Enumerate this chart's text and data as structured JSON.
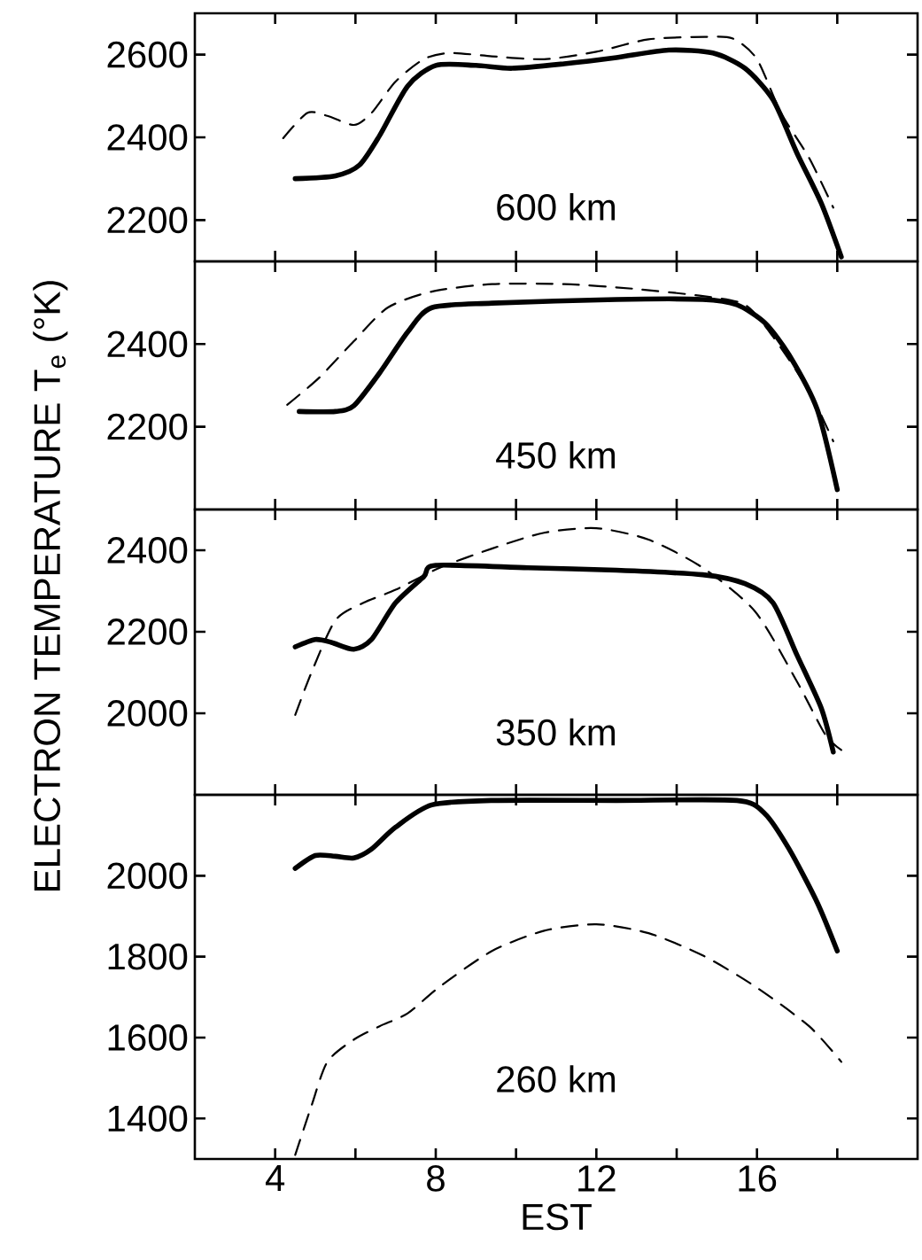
{
  "chart_data": [
    {
      "type": "line",
      "ylabel": "ELECTRON  TEMPERATURE  T$_{e}$ (°K)",
      "annotations": [
        "600 km"
      ],
      "xlim": [
        2,
        20
      ],
      "xticks": [
        4,
        {
          "value": 6,
          "label": null
        },
        8,
        {
          "value": 10,
          "label": null
        },
        12,
        {
          "value": 14,
          "label": null
        },
        16,
        {
          "value": 18,
          "label": null
        }
      ],
      "ylim": [
        2100,
        2700
      ],
      "yticks": [
        2200,
        2400,
        2600
      ],
      "tick_labels": "y",
      "series": [
        {
          "color": "#000000",
          "line_style": "solid",
          "x": [
            4.5,
            5.5,
            6.1,
            6.6,
            7.3,
            8.0,
            9.0,
            9.9,
            11.2,
            12.5,
            13.8,
            14.9,
            15.7,
            16.4,
            17.0,
            17.6,
            18.1
          ],
          "values": [
            2300,
            2307,
            2333,
            2404,
            2524,
            2574,
            2574,
            2567,
            2578,
            2593,
            2611,
            2604,
            2567,
            2491,
            2361,
            2241,
            2111
          ]
        },
        {
          "color": "#000000",
          "line_style": "dashed",
          "x": [
            4.2,
            4.8,
            5.3,
            5.96,
            6.4,
            7.0,
            7.7,
            8.35,
            9.4,
            10.7,
            12.0,
            13.3,
            14.7,
            15.4,
            16.0,
            16.6,
            17.3,
            17.9
          ],
          "values": [
            2398,
            2459,
            2452,
            2430,
            2459,
            2535,
            2589,
            2604,
            2596,
            2589,
            2607,
            2637,
            2643,
            2639,
            2589,
            2459,
            2350,
            2230
          ]
        }
      ]
    },
    {
      "type": "line",
      "annotations": [
        "450 km"
      ],
      "xlim": [
        2,
        20
      ],
      "xticks": [
        4,
        {
          "value": 6,
          "label": null
        },
        8,
        {
          "value": 10,
          "label": null
        },
        12,
        {
          "value": 14,
          "label": null
        },
        16,
        {
          "value": 18,
          "label": null
        }
      ],
      "ylim": [
        2000,
        2600
      ],
      "yticks": [
        2200,
        2400
      ],
      "tick_labels": "y",
      "series": [
        {
          "color": "#000000",
          "line_style": "solid",
          "x": [
            4.6,
            5.5,
            5.96,
            6.6,
            7.3,
            7.9,
            9.4,
            12.5,
            14.65,
            15.5,
            16.2,
            16.8,
            17.5,
            18.0
          ],
          "values": [
            2237,
            2237,
            2251,
            2330,
            2429,
            2488,
            2499,
            2508,
            2508,
            2495,
            2451,
            2374,
            2242,
            2048
          ]
        },
        {
          "color": "#000000",
          "line_style": "dashed",
          "x": [
            4.3,
            5.1,
            5.96,
            6.8,
            7.9,
            9.4,
            11.2,
            12.9,
            14.65,
            15.7,
            16.4,
            17.3,
            17.9
          ],
          "values": [
            2253,
            2319,
            2407,
            2488,
            2527,
            2545,
            2545,
            2534,
            2516,
            2495,
            2418,
            2286,
            2165
          ]
        }
      ]
    },
    {
      "type": "line",
      "annotations": [
        "350 km"
      ],
      "xlim": [
        2,
        20
      ],
      "xticks": [
        4,
        {
          "value": 6,
          "label": null
        },
        8,
        {
          "value": 10,
          "label": null
        },
        12,
        {
          "value": 14,
          "label": null
        },
        16,
        {
          "value": 18,
          "label": null
        }
      ],
      "ylim": [
        1800,
        2500
      ],
      "yticks": [
        2000,
        2200,
        2400
      ],
      "tick_labels": "y",
      "series": [
        {
          "color": "#000000",
          "line_style": "solid",
          "x": [
            4.5,
            5.0,
            5.4,
            5.96,
            6.4,
            7.0,
            7.7,
            8.0,
            10.3,
            12.5,
            14.65,
            15.7,
            16.4,
            17.0,
            17.6,
            17.9
          ],
          "values": [
            2163,
            2181,
            2174,
            2157,
            2181,
            2271,
            2335,
            2363,
            2357,
            2351,
            2340,
            2318,
            2271,
            2142,
            2013,
            1905
          ]
        },
        {
          "color": "#000000",
          "line_style": "dashed",
          "x": [
            4.5,
            4.9,
            5.5,
            6.2,
            7.0,
            8.1,
            9.4,
            10.7,
            12.0,
            13.3,
            14.65,
            15.96,
            17.0,
            17.7,
            18.1
          ],
          "values": [
            1996,
            2099,
            2228,
            2271,
            2303,
            2357,
            2404,
            2443,
            2454,
            2426,
            2357,
            2249,
            2077,
            1948,
            1910
          ]
        }
      ]
    },
    {
      "type": "line",
      "xlabel": "EST",
      "annotations": [
        "260 km"
      ],
      "xlim": [
        2,
        20
      ],
      "xticks": [
        4,
        {
          "value": 6,
          "label": null
        },
        8,
        {
          "value": 10,
          "label": null
        },
        12,
        {
          "value": 14,
          "label": null
        },
        16,
        {
          "value": 18,
          "label": null
        }
      ],
      "ylim": [
        1300,
        2200
      ],
      "yticks": [
        1400,
        1600,
        1800,
        2000
      ],
      "series": [
        {
          "color": "#000000",
          "line_style": "solid",
          "x": [
            4.5,
            5.0,
            5.5,
            5.96,
            6.4,
            7.0,
            7.9,
            9.4,
            12.5,
            15.5,
            16.2,
            16.8,
            17.5,
            18.0
          ],
          "values": [
            2018,
            2050,
            2048,
            2044,
            2066,
            2120,
            2175,
            2186,
            2186,
            2186,
            2153,
            2066,
            1934,
            1814
          ]
        },
        {
          "color": "#000000",
          "line_style": "dashed",
          "x": [
            4.5,
            4.9,
            5.3,
            5.96,
            6.6,
            7.3,
            8.1,
            9.4,
            10.7,
            12.0,
            13.3,
            14.65,
            15.96,
            17.3,
            18.1
          ],
          "values": [
            1310,
            1430,
            1540,
            1595,
            1628,
            1660,
            1726,
            1814,
            1864,
            1880,
            1858,
            1803,
            1726,
            1628,
            1540
          ]
        }
      ]
    }
  ]
}
